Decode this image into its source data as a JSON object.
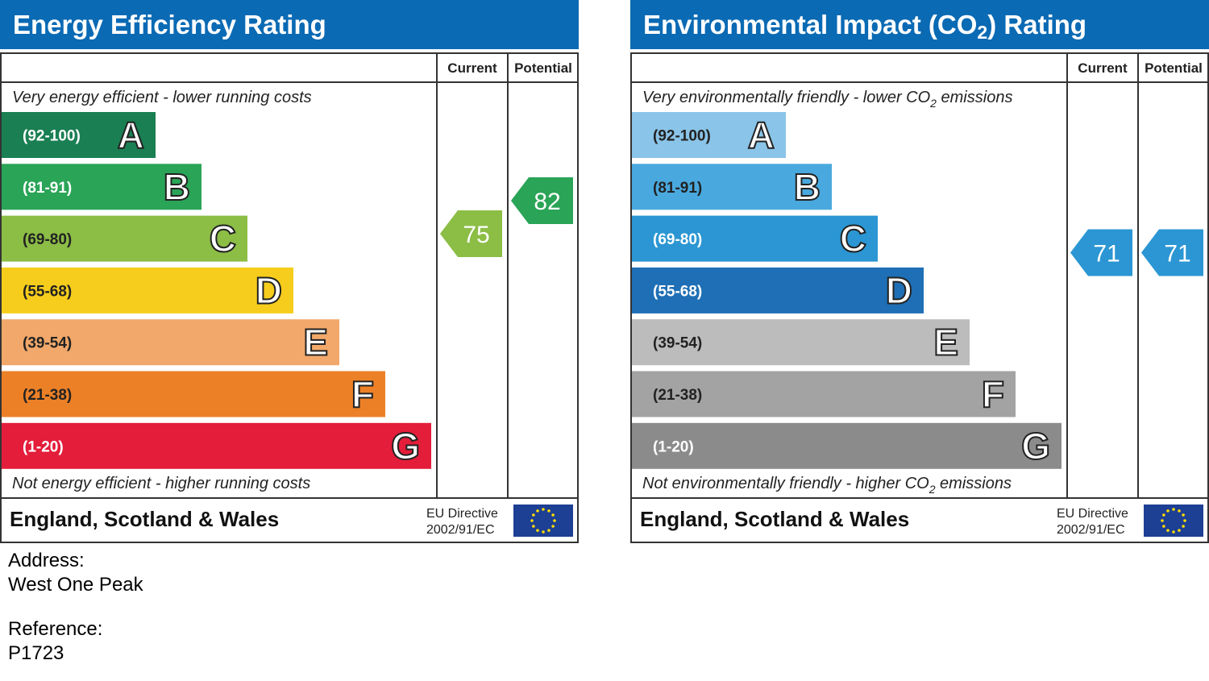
{
  "panels": [
    {
      "title_parts": [
        "Energy Efficiency Rating"
      ],
      "col_current": "Current",
      "col_potential": "Potential",
      "top_note_parts": [
        "Very energy efficient - lower running costs"
      ],
      "bottom_note_parts": [
        "Not energy efficient - higher running costs"
      ],
      "bands": [
        {
          "range": "(92-100)",
          "letter": "A",
          "color": "#1a7f53"
        },
        {
          "range": "(81-91)",
          "letter": "B",
          "color": "#2aa457"
        },
        {
          "range": "(69-80)",
          "letter": "C",
          "color": "#8cbd45"
        },
        {
          "range": "(55-68)",
          "letter": "D",
          "color": "#f6cd1c"
        },
        {
          "range": "(39-54)",
          "letter": "E",
          "color": "#f1a86a"
        },
        {
          "range": "(21-38)",
          "letter": "F",
          "color": "#ec8027"
        },
        {
          "range": "(1-20)",
          "letter": "G",
          "color": "#e31d3a"
        }
      ],
      "current": 75,
      "potential": 82,
      "region": "England, Scotland & Wales",
      "directive": [
        "EU Directive",
        "2002/91/EC"
      ]
    },
    {
      "title_parts": [
        "Environmental Impact (CO",
        "2",
        ") Rating"
      ],
      "col_current": "Current",
      "col_potential": "Potential",
      "top_note_parts": [
        "Very environmentally friendly - lower CO",
        "2",
        " emissions"
      ],
      "bottom_note_parts": [
        "Not environmentally friendly - higher CO",
        "2",
        " emissions"
      ],
      "bands": [
        {
          "range": "(92-100)",
          "letter": "A",
          "color": "#8ac4e8"
        },
        {
          "range": "(81-91)",
          "letter": "B",
          "color": "#49a9de"
        },
        {
          "range": "(69-80)",
          "letter": "C",
          "color": "#2b96d3"
        },
        {
          "range": "(55-68)",
          "letter": "D",
          "color": "#1e6fb5"
        },
        {
          "range": "(39-54)",
          "letter": "E",
          "color": "#bcbcbc"
        },
        {
          "range": "(21-38)",
          "letter": "F",
          "color": "#a3a3a3"
        },
        {
          "range": "(1-20)",
          "letter": "G",
          "color": "#8b8b8b"
        }
      ],
      "current": 71,
      "potential": 71,
      "region": "England, Scotland & Wales",
      "directive": [
        "EU Directive",
        "2002/91/EC"
      ]
    }
  ],
  "address_label": "Address:",
  "address": "West One Peak",
  "reference_label": "Reference:",
  "reference": "P1723"
}
